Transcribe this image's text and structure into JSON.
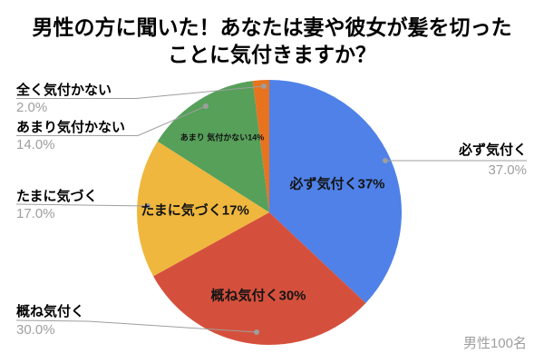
{
  "title": {
    "text": "男性の方に聞いた！あなたは妻や彼女が髪を切ったことに気付きますか？",
    "lines": [
      "男性の方に聞いた！あなたは妻や彼女が髪を切った",
      "ことに気付きますか？"
    ]
  },
  "footnote": "男性100名",
  "palette": {
    "background": "#ffffff",
    "text_black": "#000000",
    "text_gray": "#9e9e9e",
    "leader_line": "#9e9e9e"
  },
  "chart_data": {
    "type": "pie",
    "title": "男性の方に聞いた！あなたは妻や彼女が髪を切ったことに気付きますか？",
    "legend_position": "none",
    "start_angle_deg": 0,
    "direction": "clockwise",
    "footnote": "男性100名",
    "slices": [
      {
        "label": "必ず気付く",
        "value": 37.0,
        "pct_label": "37.0%",
        "inner_label": "必ず気付く37%",
        "color": "#4f81e8"
      },
      {
        "label": "概ね気付く",
        "value": 30.0,
        "pct_label": "30.0%",
        "inner_label": "概ね気付く30%",
        "color": "#d5503c"
      },
      {
        "label": "たまに気づく",
        "value": 17.0,
        "pct_label": "17.0%",
        "inner_label": "たまに気づく17%",
        "color": "#efb73e"
      },
      {
        "label": "あまり気付かない",
        "value": 14.0,
        "pct_label": "14.0%",
        "inner_label": "あまり 気付かない14%",
        "color": "#56a05a"
      },
      {
        "label": "全く気付かない",
        "value": 2.0,
        "pct_label": "2.0%",
        "inner_label": "",
        "color": "#e8731e"
      }
    ]
  }
}
